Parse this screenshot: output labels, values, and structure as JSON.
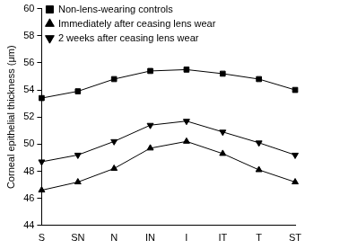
{
  "chart_data": {
    "type": "line",
    "y_label": "Corneal epithelial thickness (μm)",
    "categories": [
      "S",
      "SN",
      "N",
      "IN",
      "I",
      "IT",
      "T",
      "ST"
    ],
    "series": [
      {
        "name": "Non-lens-wearing controls",
        "color": "#000000",
        "marker": "square",
        "line_style": "solid",
        "values": [
          53.4,
          53.9,
          54.8,
          55.4,
          55.5,
          55.2,
          54.8,
          54.0
        ]
      },
      {
        "name": "Immediately after ceasing lens wear",
        "color": "#000000",
        "marker": "triangle",
        "line_style": "solid",
        "values": [
          46.6,
          47.2,
          48.2,
          49.7,
          50.2,
          49.3,
          48.1,
          47.2
        ]
      },
      {
        "name": "2 weeks after ceasing lens wear",
        "color": "#000000",
        "marker": "triangle_down",
        "line_style": "solid",
        "values": [
          48.7,
          49.2,
          50.2,
          51.4,
          51.7,
          50.9,
          50.1,
          49.2
        ]
      }
    ],
    "ylim": [
      44,
      60
    ],
    "yticks": [
      44,
      46,
      48,
      50,
      52,
      54,
      56,
      58,
      60
    ],
    "grid": false,
    "legend": "upper left"
  }
}
